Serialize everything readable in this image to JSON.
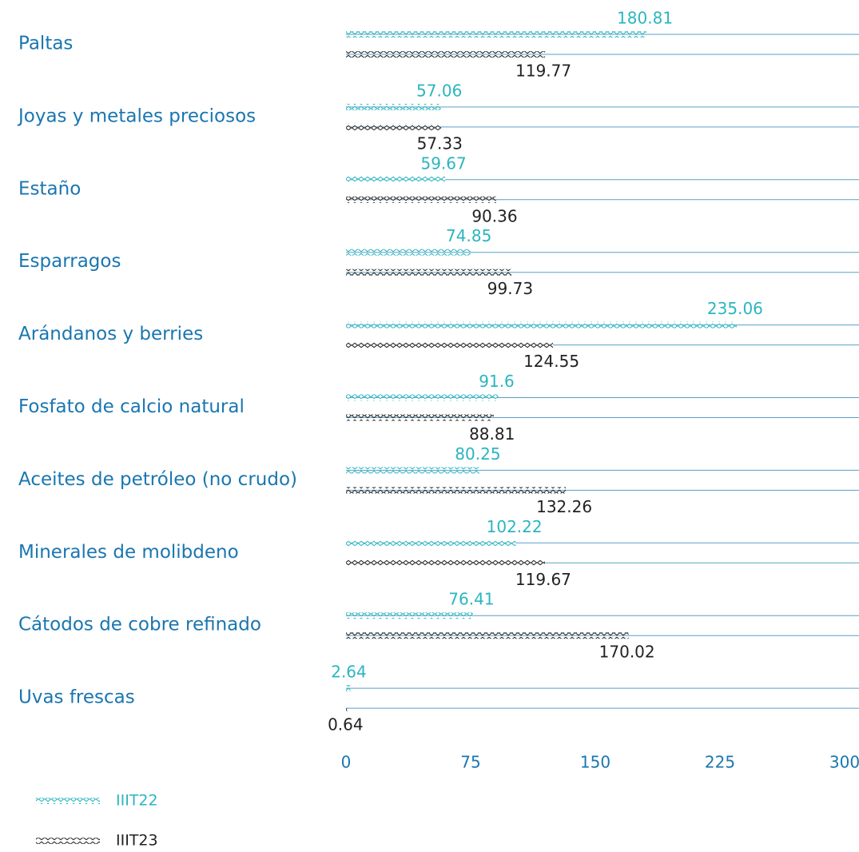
{
  "chart_data": {
    "type": "bar",
    "categories": [
      "Paltas",
      "Joyas y metales preciosos",
      "Estaño",
      "Esparragos",
      "Arándanos y berries",
      "Fosfato de calcio natural",
      "Aceites de petróleo (no crudo)",
      "Minerales de molibdeno",
      "Cátodos de cobre refinado",
      "Uvas frescas"
    ],
    "series": [
      {
        "name": "IIIT22",
        "color": "#2bb5c0",
        "values": [
          180.81,
          57.06,
          59.67,
          74.85,
          235.06,
          91.6,
          80.25,
          102.22,
          76.41,
          2.64
        ]
      },
      {
        "name": "IIIT23",
        "color": "#222222",
        "values": [
          119.77,
          57.33,
          90.36,
          99.73,
          124.55,
          88.81,
          132.26,
          119.67,
          170.02,
          0.64
        ]
      }
    ],
    "xlim": [
      0,
      300
    ],
    "xticks": [
      0,
      75,
      150,
      225,
      300
    ]
  }
}
